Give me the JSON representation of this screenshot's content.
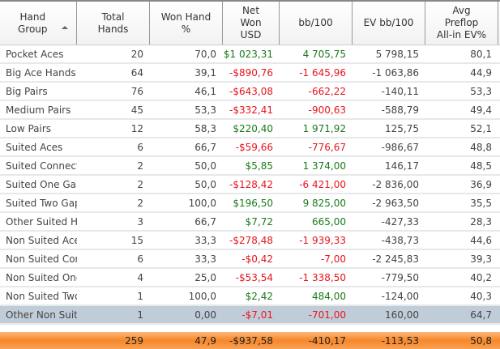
{
  "columns": [
    "Hand\nGroup",
    "Total\nHands",
    "Won Hand\n%",
    "Net\nWon\nUSD",
    "bb/100",
    "EV bb/100",
    "Avg\nPreflop\nAll-in EV%"
  ],
  "rows": [
    [
      "Pocket Aces",
      "20",
      "70,0",
      "$1 023,31",
      "4 705,75",
      "5 798,15",
      "80,1"
    ],
    [
      "Big Ace Hands",
      "64",
      "39,1",
      "-$890,76",
      "-1 645,96",
      "-1 063,86",
      "44,9"
    ],
    [
      "Big Pairs",
      "76",
      "46,1",
      "-$643,08",
      "-662,22",
      "-140,11",
      "53,3"
    ],
    [
      "Medium Pairs",
      "45",
      "53,3",
      "-$332,41",
      "-900,63",
      "-588,79",
      "49,4"
    ],
    [
      "Low Pairs",
      "12",
      "58,3",
      "$220,40",
      "1 971,92",
      "125,75",
      "52,1"
    ],
    [
      "Suited Aces",
      "6",
      "66,7",
      "-$59,66",
      "-776,67",
      "-986,67",
      "48,8"
    ],
    [
      "Suited Connectors",
      "2",
      "50,0",
      "$5,85",
      "1 374,00",
      "146,17",
      "48,5"
    ],
    [
      "Suited One Gappers",
      "2",
      "50,0",
      "-$128,42",
      "-6 421,00",
      "-2 836,00",
      "36,9"
    ],
    [
      "Suited Two Gappers",
      "2",
      "100,0",
      "$196,50",
      "9 825,00",
      "-2 963,50",
      "35,5"
    ],
    [
      "Other Suited Hands",
      "3",
      "66,7",
      "$7,72",
      "665,00",
      "-427,33",
      "28,3"
    ],
    [
      "Non Suited Aces",
      "15",
      "33,3",
      "-$278,48",
      "-1 939,33",
      "-438,73",
      "44,6"
    ],
    [
      "Non Suited Connectors",
      "6",
      "33,3",
      "-$0,42",
      "-7,00",
      "-2 245,83",
      "39,3"
    ],
    [
      "Non Suited One Gappers",
      "4",
      "25,0",
      "-$53,54",
      "-1 338,50",
      "-779,50",
      "40,2"
    ],
    [
      "Non Suited Two Gappers",
      "1",
      "100,0",
      "$2,42",
      "484,00",
      "-124,00",
      "40,3"
    ],
    [
      "Other Non Suited Hands",
      "1",
      "0,00",
      "-$7,01",
      "-701,00",
      "160,00",
      "64,7"
    ]
  ],
  "selected_row": 14,
  "total": [
    "",
    "259",
    "47,9",
    "-$937,58",
    "-410,17",
    "-113,53",
    "50,8"
  ],
  "colors": {
    "positive": "#1a7a1a",
    "negative": "#e8141c",
    "selected": "#c0ccd8",
    "total": "#f7872a"
  }
}
